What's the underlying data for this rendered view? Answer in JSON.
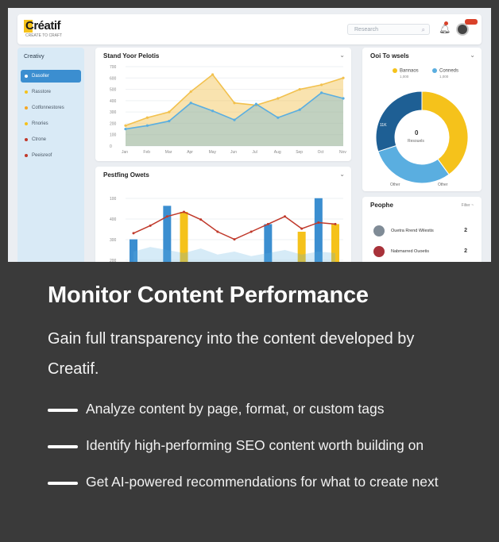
{
  "screenshot": {
    "brand": "Créatif",
    "brand_tagline": "CREATE TO CRAFT",
    "search_placeholder": "Research",
    "sidebar": {
      "title": "Creativy",
      "items": [
        {
          "label": "Dasoller",
          "color": "#ffffff"
        },
        {
          "label": "Rasstore",
          "color": "#f5c21b"
        },
        {
          "label": "Cotfonnestores",
          "color": "#f5a623"
        },
        {
          "label": "Rnories",
          "color": "#f5c21b"
        },
        {
          "label": "Ctrone",
          "color": "#c0392b"
        },
        {
          "label": "Peeisreof",
          "color": "#c0392b"
        }
      ]
    },
    "card1": {
      "title": "Stand Yoor Pelotis",
      "ylabels": [
        "700",
        "600",
        "500",
        "400",
        "300",
        "200",
        "100",
        "0"
      ],
      "xlabels": [
        "Jan",
        "Feb",
        "Mar",
        "Apr",
        "May",
        "Jun",
        "Jul",
        "Aug",
        "Sep",
        "Oct",
        "Nov"
      ]
    },
    "card2": {
      "title": "Pestfing Owets",
      "ylabels": [
        "100",
        "400",
        "300",
        "200"
      ]
    },
    "card3": {
      "title": "Ooi To wsels",
      "legend": [
        {
          "name": "Bannaos",
          "sub": "1,000",
          "color": "#f5c21b"
        },
        {
          "name": "Conneds",
          "sub": "1,000",
          "color": "#5aaee0"
        }
      ],
      "donut_center": "0",
      "donut_center_sub": "Resouels",
      "donut_left_label": "11K",
      "donut_bottom": [
        "Other",
        "Other"
      ]
    },
    "card4": {
      "title": "Peophe",
      "filter": "Filter ~",
      "rows": [
        {
          "name": "Ouetra Rrend Wilestis",
          "value": "2"
        },
        {
          "name": "Nabmarred Ouoetis",
          "value": "2"
        }
      ]
    }
  },
  "heading": "Monitor Content Performance",
  "description": "Gain full transparency into the content developed by Creatif.",
  "features": [
    "Analyze content by page, format, or custom tags",
    "Identify high-performing SEO content worth building on",
    "Get AI-powered recommendations for what to create next"
  ],
  "chart_data": [
    {
      "type": "area",
      "categories": [
        "Jan",
        "Feb",
        "Mar",
        "Apr",
        "May",
        "Jun",
        "Jul",
        "Aug",
        "Sep",
        "Oct",
        "Nov"
      ],
      "ylim": [
        0,
        700
      ],
      "series": [
        {
          "color": "#f2c14e",
          "values": [
            180,
            250,
            300,
            480,
            630,
            380,
            360,
            420,
            500,
            540,
            600
          ]
        },
        {
          "color": "#5aaee0",
          "values": [
            150,
            180,
            220,
            380,
            310,
            230,
            370,
            250,
            320,
            470,
            420
          ]
        }
      ]
    },
    {
      "type": "bar",
      "ylim": [
        0,
        500
      ],
      "series": [
        {
          "color": "#3b8ed0",
          "values": [
            200,
            0,
            420,
            0,
            0,
            0,
            0,
            0,
            300,
            0,
            0,
            470,
            0
          ]
        },
        {
          "color": "#f5c21b",
          "values": [
            0,
            0,
            0,
            380,
            0,
            0,
            0,
            0,
            0,
            0,
            250,
            0,
            300
          ]
        },
        {
          "color": "#c0392b",
          "values": [
            240,
            290,
            350,
            380,
            330,
            250,
            200,
            250,
            300,
            350,
            270,
            310,
            300
          ]
        }
      ]
    },
    {
      "type": "pie",
      "values": [
        40,
        30,
        30
      ],
      "colors": [
        "#f5c21b",
        "#5aaee0",
        "#1e5f94"
      ]
    }
  ]
}
